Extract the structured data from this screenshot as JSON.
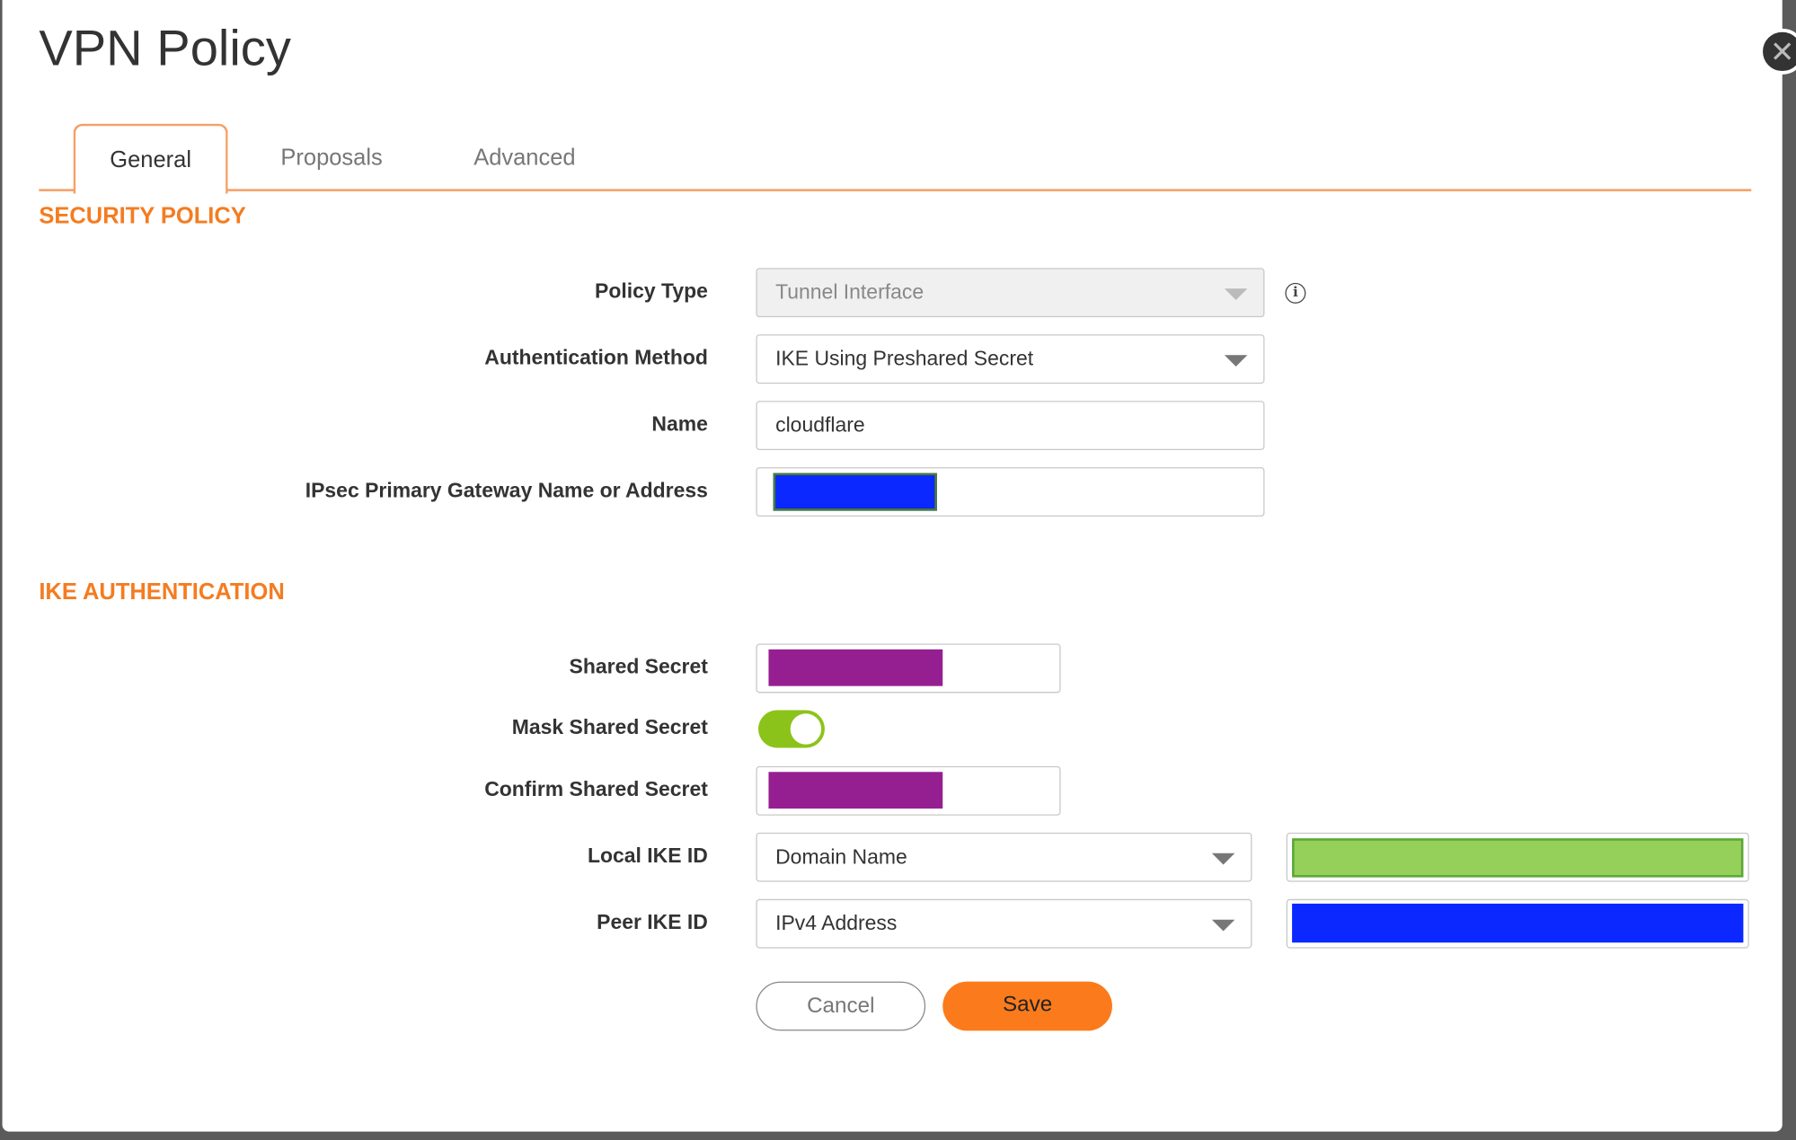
{
  "dialog": {
    "title": "VPN Policy",
    "close_icon": "close-icon"
  },
  "tabs": [
    {
      "label": "General",
      "active": true
    },
    {
      "label": "Proposals"
    },
    {
      "label": "Advanced"
    }
  ],
  "security_policy": {
    "heading": "SECURITY POLICY",
    "policy_type": {
      "label": "Policy Type",
      "value": "Tunnel Interface",
      "disabled": true
    },
    "auth_method": {
      "label": "Authentication Method",
      "value": "IKE Using Preshared Secret"
    },
    "name": {
      "label": "Name",
      "value": "cloudflare"
    },
    "gateway": {
      "label": "IPsec Primary Gateway Name or Address",
      "redacted_color": "#0a28ff"
    }
  },
  "ike_auth": {
    "heading": "IKE AUTHENTICATION",
    "shared_secret": {
      "label": "Shared Secret",
      "redacted_color": "#951f91"
    },
    "mask_shared_secret": {
      "label": "Mask Shared Secret",
      "on": true
    },
    "confirm_shared_secret": {
      "label": "Confirm Shared Secret",
      "redacted_color": "#951f91"
    },
    "local_ike_id": {
      "label": "Local IKE ID",
      "type": "Domain Name",
      "redacted_color": "#95d05a"
    },
    "peer_ike_id": {
      "label": "Peer IKE ID",
      "type": "IPv4 Address",
      "redacted_color": "#0a28ff"
    }
  },
  "buttons": {
    "cancel": "Cancel",
    "save": "Save"
  },
  "colors": {
    "accent": "#f47c20",
    "toggle_on": "#8cc31b"
  }
}
